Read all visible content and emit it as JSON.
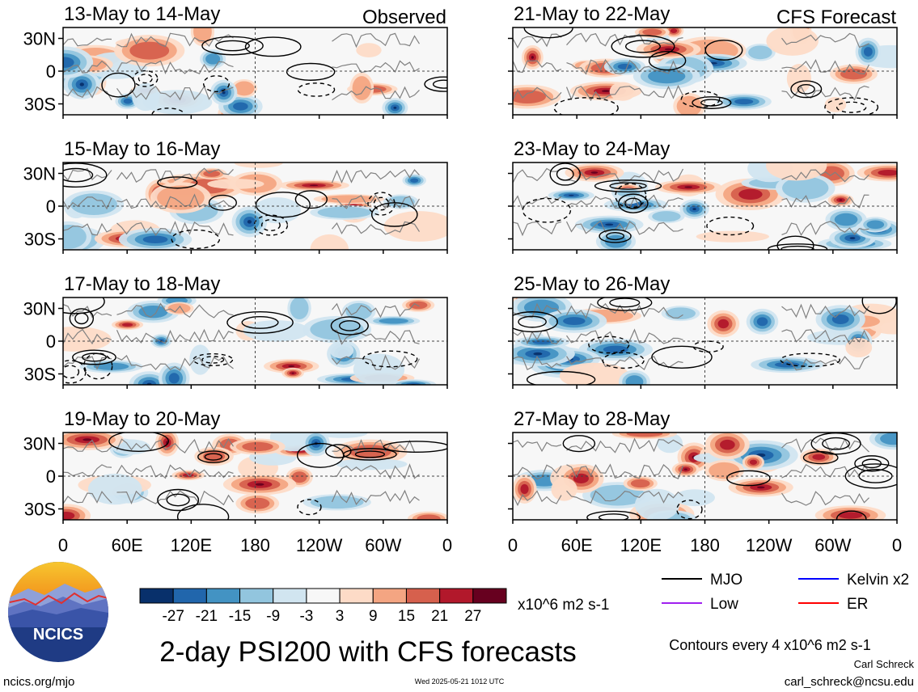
{
  "chart_data": {
    "type": "heatmap",
    "title": "2-day PSI200 with CFS forecasts",
    "variable": "PSI200",
    "units": "x10^6 m2 s-1",
    "colorbar": {
      "tick_labels": [
        "-27",
        "-21",
        "-15",
        "-9",
        "-3",
        "3",
        "9",
        "15",
        "21",
        "27"
      ],
      "bin_edges": [
        -27,
        -21,
        -15,
        -9,
        -3,
        3,
        9,
        15,
        21,
        27
      ],
      "colors": [
        "#08306b",
        "#2166ac",
        "#4393c3",
        "#92c5de",
        "#d1e5f0",
        "#f7f7f7",
        "#fddbc7",
        "#f4a582",
        "#d6604d",
        "#b2182b",
        "#67001f"
      ]
    },
    "x_axis": {
      "tick_labels": [
        "0",
        "60E",
        "120E",
        "180",
        "120W",
        "60W",
        "0"
      ],
      "range_deg": [
        0,
        360
      ]
    },
    "y_axis": {
      "tick_labels": [
        "30N",
        "0",
        "30S"
      ],
      "range_deg": [
        -40,
        40
      ]
    },
    "panels": [
      {
        "label": "13-May to 14-May",
        "source": "Observed"
      },
      {
        "label": "15-May to 16-May"
      },
      {
        "label": "17-May to 18-May"
      },
      {
        "label": "19-May to 20-May"
      },
      {
        "label": "21-May to 22-May",
        "source": "CFS Forecast"
      },
      {
        "label": "23-May to 24-May"
      },
      {
        "label": "25-May to 26-May"
      },
      {
        "label": "27-May to 28-May"
      }
    ],
    "legend": [
      {
        "name": "MJO",
        "color": "#000000"
      },
      {
        "name": "Kelvin x2",
        "color": "#0000ff"
      },
      {
        "name": "Low",
        "color": "#a020f0"
      },
      {
        "name": "ER",
        "color": "#ff0000"
      }
    ],
    "contour_note": "Contours every 4 x10^6 m2 s-1"
  },
  "footer": {
    "url": "ncics.org/mjo",
    "timestamp": "Wed 2025-05-21 1012 UTC",
    "author": "Carl Schreck",
    "email": "carl_schreck@ncsu.edu",
    "logo_text": "NCICS"
  }
}
